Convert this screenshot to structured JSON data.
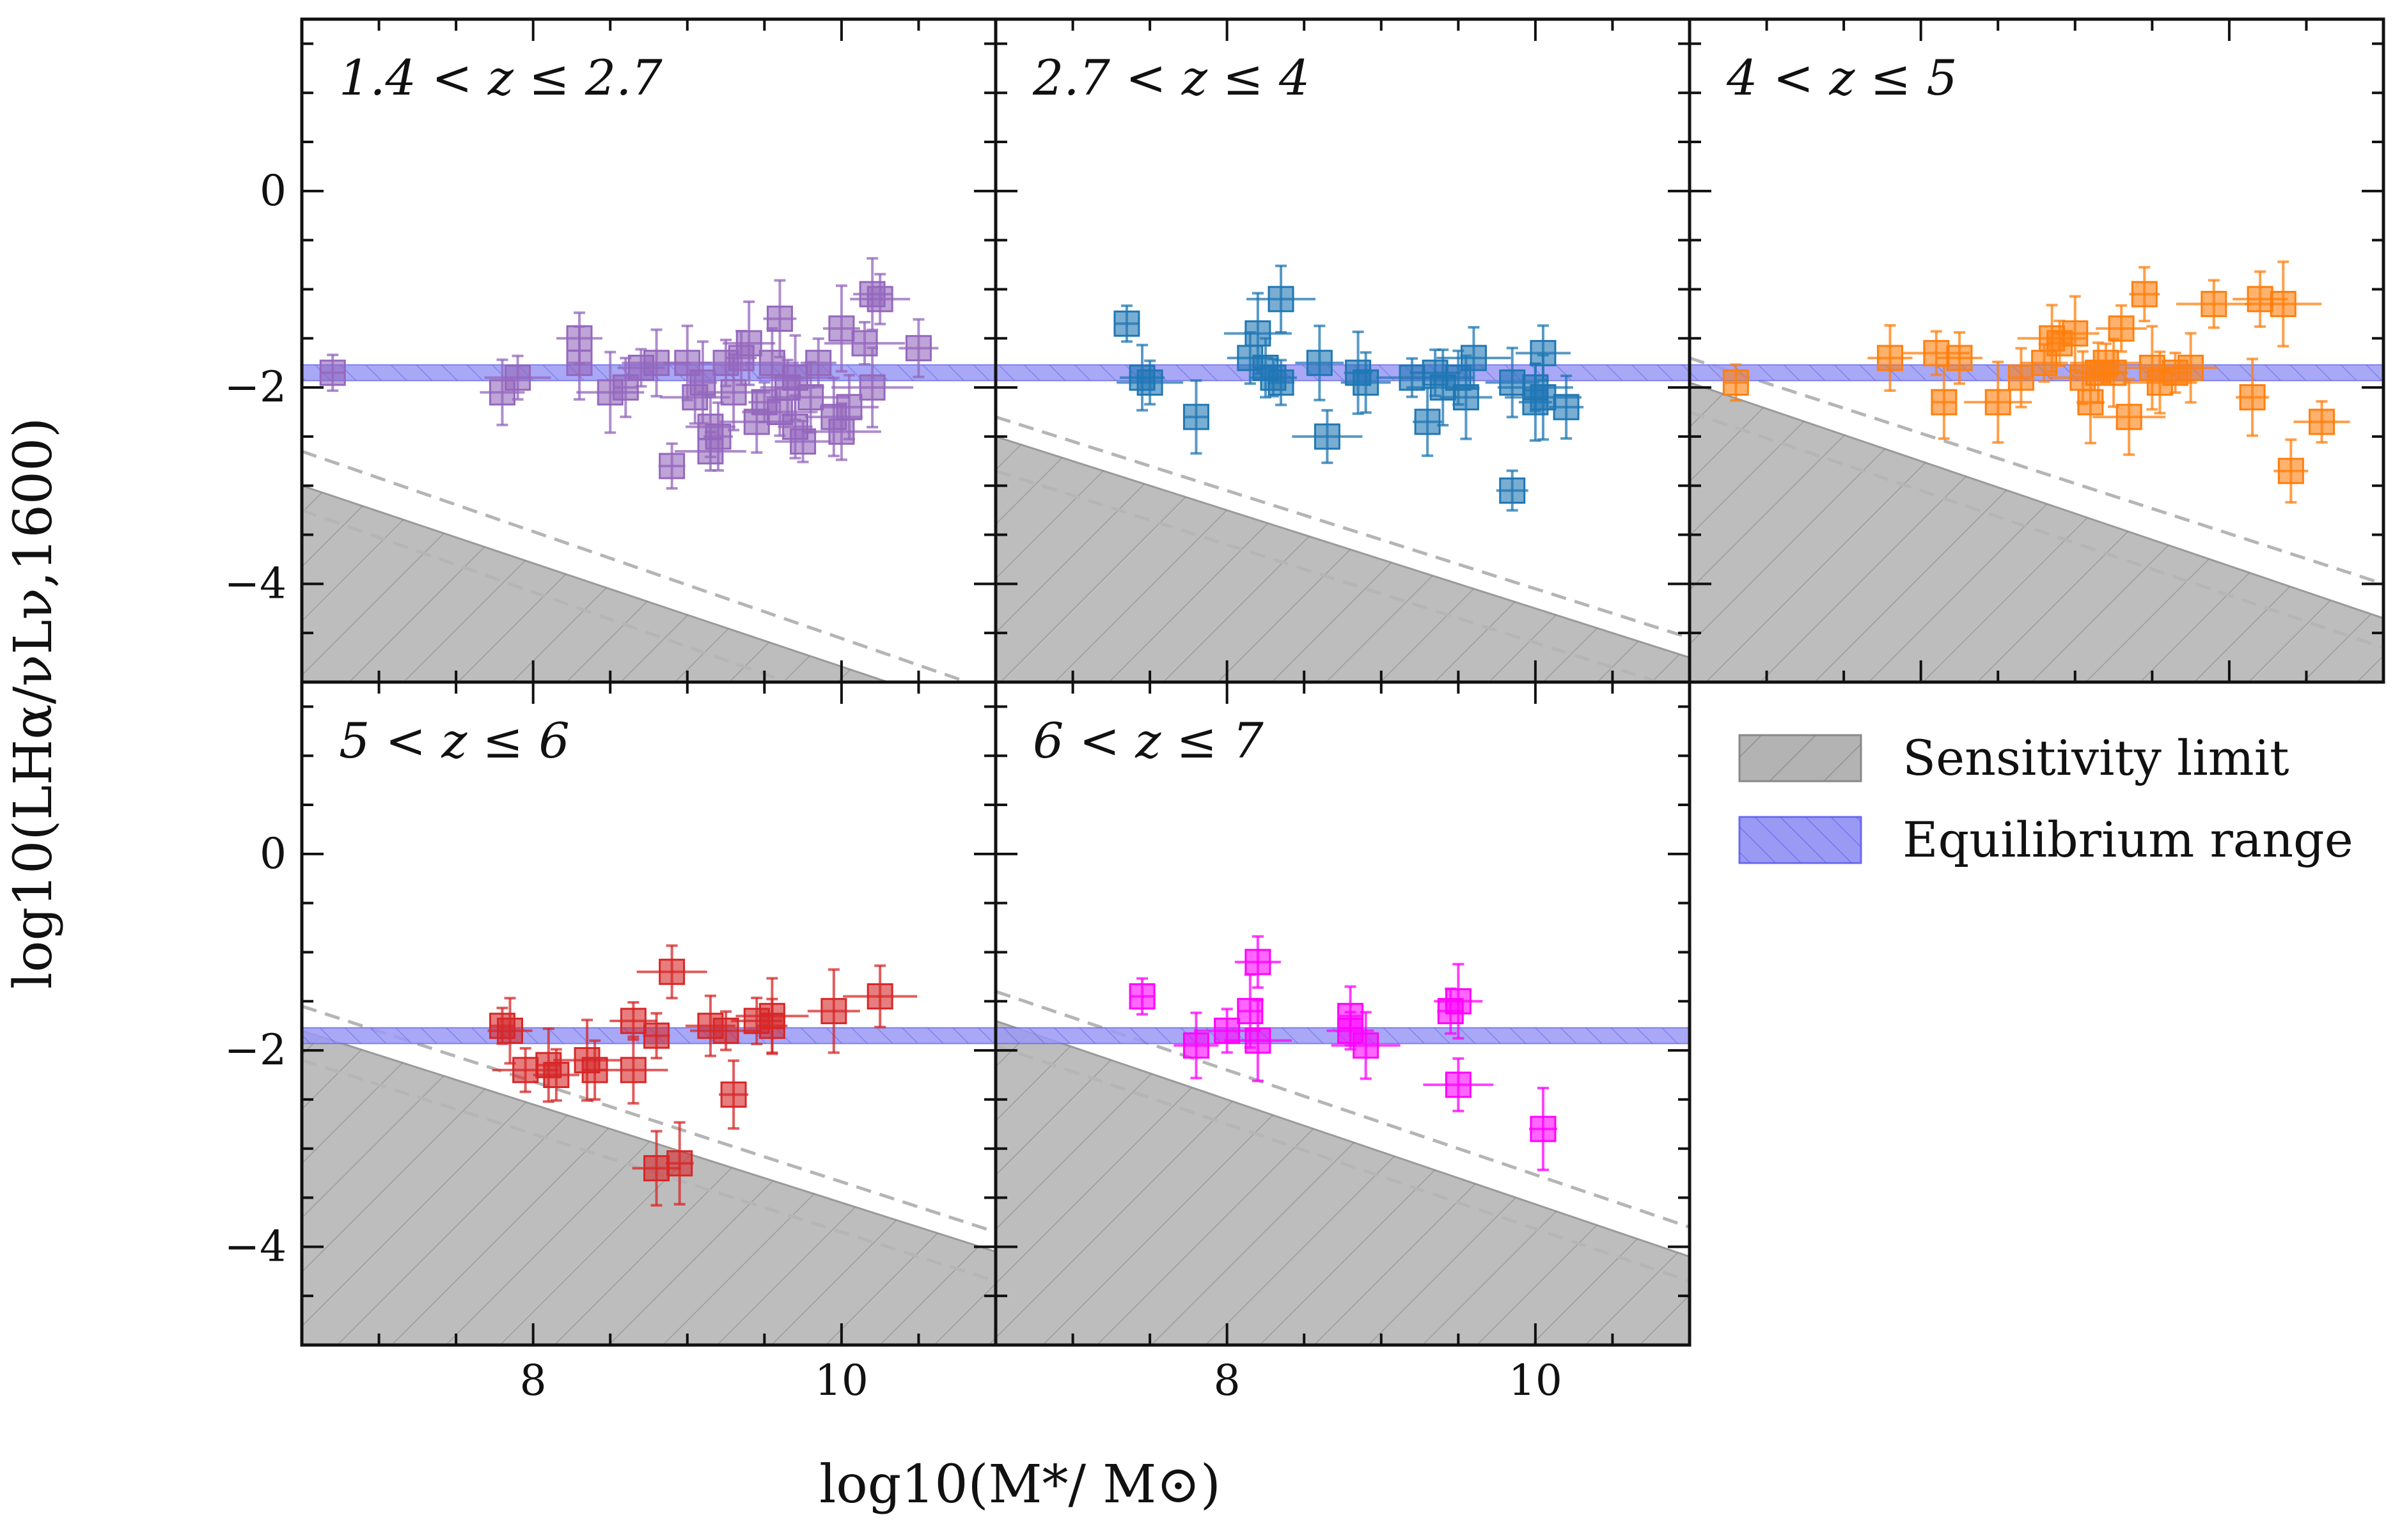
{
  "chart_data": {
    "type": "scatter",
    "title": "",
    "xlabel": "log10(M*/ M⊙)",
    "ylabel": "log10(LHα/νLν,1600)",
    "xlim": [
      6.5,
      11.0
    ],
    "ylim": [
      -5.0,
      1.75
    ],
    "xticks": [
      "8",
      "10"
    ],
    "yticks": [
      "0",
      "−2",
      "−4"
    ],
    "legend": {
      "placement": "empty panel bottom-right",
      "entries": [
        {
          "label": "Sensitivity limit",
          "color": "#b3b3b3"
        },
        {
          "label": "Equilibrium range",
          "color": "#9a9af5"
        }
      ]
    },
    "equilibrium_range": [
      -1.93,
      -1.77
    ],
    "panels": [
      {
        "label": "1.4 < z ≤ 2.7",
        "color": "#9467bd",
        "sensitivity_limit": {
          "points": [
            [
              6.5,
              -3.0
            ],
            [
              10.3,
              -5.0
            ]
          ]
        },
        "dashed_lines": [
          {
            "points": [
              [
                6.5,
                -2.65
              ],
              [
                11.0,
                -5.1
              ]
            ]
          },
          {
            "points": [
              [
                6.5,
                -3.25
              ],
              [
                11.0,
                -5.75
              ]
            ]
          }
        ],
        "points": [
          {
            "x": 6.7,
            "y": -1.85
          },
          {
            "x": 7.8,
            "y": -2.05
          },
          {
            "x": 7.9,
            "y": -1.9
          },
          {
            "x": 8.3,
            "y": -1.75
          },
          {
            "x": 8.3,
            "y": -1.5
          },
          {
            "x": 8.5,
            "y": -2.05
          },
          {
            "x": 8.6,
            "y": -2.0
          },
          {
            "x": 8.7,
            "y": -1.8
          },
          {
            "x": 8.8,
            "y": -1.75
          },
          {
            "x": 8.9,
            "y": -2.8
          },
          {
            "x": 9.0,
            "y": -1.75
          },
          {
            "x": 9.05,
            "y": -2.1
          },
          {
            "x": 9.1,
            "y": -1.95
          },
          {
            "x": 9.15,
            "y": -2.4
          },
          {
            "x": 9.15,
            "y": -2.65
          },
          {
            "x": 9.2,
            "y": -2.5
          },
          {
            "x": 9.25,
            "y": -1.75
          },
          {
            "x": 9.3,
            "y": -2.05
          },
          {
            "x": 9.35,
            "y": -1.7
          },
          {
            "x": 9.4,
            "y": -1.55
          },
          {
            "x": 9.45,
            "y": -2.35
          },
          {
            "x": 9.5,
            "y": -2.15
          },
          {
            "x": 9.55,
            "y": -1.75
          },
          {
            "x": 9.6,
            "y": -2.25
          },
          {
            "x": 9.6,
            "y": -1.3
          },
          {
            "x": 9.65,
            "y": -2.0
          },
          {
            "x": 9.7,
            "y": -1.9
          },
          {
            "x": 9.7,
            "y": -2.4
          },
          {
            "x": 9.75,
            "y": -2.55
          },
          {
            "x": 9.8,
            "y": -2.1
          },
          {
            "x": 9.85,
            "y": -1.75
          },
          {
            "x": 9.95,
            "y": -2.3
          },
          {
            "x": 10.0,
            "y": -2.45
          },
          {
            "x": 10.0,
            "y": -1.4
          },
          {
            "x": 10.05,
            "y": -2.2
          },
          {
            "x": 10.15,
            "y": -1.55
          },
          {
            "x": 10.2,
            "y": -1.05
          },
          {
            "x": 10.25,
            "y": -1.1
          },
          {
            "x": 10.2,
            "y": -2.0
          },
          {
            "x": 10.5,
            "y": -1.6
          }
        ]
      },
      {
        "label": "2.7 < z ≤ 4",
        "color": "#1f77b4",
        "sensitivity_limit": {
          "points": [
            [
              6.5,
              -2.5
            ],
            [
              11.0,
              -4.75
            ]
          ]
        },
        "dashed_lines": [
          {
            "points": [
              [
                6.5,
                -2.3
              ],
              [
                11.0,
                -4.55
              ]
            ]
          },
          {
            "points": [
              [
                6.5,
                -2.85
              ],
              [
                11.0,
                -5.1
              ]
            ]
          }
        ],
        "points": [
          {
            "x": 7.35,
            "y": -1.35
          },
          {
            "x": 7.45,
            "y": -1.9
          },
          {
            "x": 7.5,
            "y": -1.95
          },
          {
            "x": 7.8,
            "y": -2.3
          },
          {
            "x": 8.15,
            "y": -1.7
          },
          {
            "x": 8.2,
            "y": -1.45
          },
          {
            "x": 8.25,
            "y": -1.8
          },
          {
            "x": 8.3,
            "y": -1.9
          },
          {
            "x": 8.35,
            "y": -1.1
          },
          {
            "x": 8.35,
            "y": -1.95
          },
          {
            "x": 8.6,
            "y": -1.75
          },
          {
            "x": 8.65,
            "y": -2.5
          },
          {
            "x": 8.85,
            "y": -1.85
          },
          {
            "x": 8.9,
            "y": -1.95
          },
          {
            "x": 9.2,
            "y": -1.9
          },
          {
            "x": 9.3,
            "y": -2.35
          },
          {
            "x": 9.35,
            "y": -1.85
          },
          {
            "x": 9.4,
            "y": -2.0
          },
          {
            "x": 9.5,
            "y": -1.9
          },
          {
            "x": 9.55,
            "y": -2.1
          },
          {
            "x": 9.6,
            "y": -1.7
          },
          {
            "x": 9.85,
            "y": -3.05
          },
          {
            "x": 9.85,
            "y": -1.95
          },
          {
            "x": 10.0,
            "y": -2.0
          },
          {
            "x": 10.0,
            "y": -2.15
          },
          {
            "x": 10.05,
            "y": -1.65
          },
          {
            "x": 10.05,
            "y": -2.1
          },
          {
            "x": 10.2,
            "y": -2.2
          }
        ]
      },
      {
        "label": "4 < z ≤ 5",
        "color": "#ff7f0e",
        "sensitivity_limit": {
          "points": [
            [
              6.5,
              -1.95
            ],
            [
              11.0,
              -4.35
            ]
          ]
        },
        "dashed_lines": [
          {
            "points": [
              [
                6.5,
                -1.7
              ],
              [
                11.0,
                -4.0
              ]
            ]
          },
          {
            "points": [
              [
                6.5,
                -2.25
              ],
              [
                11.0,
                -4.65
              ]
            ]
          }
        ],
        "points": [
          {
            "x": 6.8,
            "y": -1.95
          },
          {
            "x": 7.8,
            "y": -1.7
          },
          {
            "x": 8.1,
            "y": -1.65
          },
          {
            "x": 8.15,
            "y": -2.15
          },
          {
            "x": 8.25,
            "y": -1.7
          },
          {
            "x": 8.5,
            "y": -2.15
          },
          {
            "x": 8.65,
            "y": -1.9
          },
          {
            "x": 8.8,
            "y": -1.75
          },
          {
            "x": 8.85,
            "y": -1.5
          },
          {
            "x": 8.9,
            "y": -1.55
          },
          {
            "x": 9.0,
            "y": -1.45
          },
          {
            "x": 9.05,
            "y": -1.9
          },
          {
            "x": 9.1,
            "y": -2.15
          },
          {
            "x": 9.15,
            "y": -1.85
          },
          {
            "x": 9.2,
            "y": -1.75
          },
          {
            "x": 9.25,
            "y": -1.85
          },
          {
            "x": 9.3,
            "y": -1.4
          },
          {
            "x": 9.35,
            "y": -2.3
          },
          {
            "x": 9.45,
            "y": -1.05
          },
          {
            "x": 9.5,
            "y": -1.8
          },
          {
            "x": 9.55,
            "y": -1.95
          },
          {
            "x": 9.65,
            "y": -1.85
          },
          {
            "x": 9.75,
            "y": -1.8
          },
          {
            "x": 9.9,
            "y": -1.15
          },
          {
            "x": 10.15,
            "y": -2.1
          },
          {
            "x": 10.2,
            "y": -1.1
          },
          {
            "x": 10.35,
            "y": -1.15
          },
          {
            "x": 10.4,
            "y": -2.85
          },
          {
            "x": 10.6,
            "y": -2.35
          }
        ]
      },
      {
        "label": "5 < z ≤ 6",
        "color": "#d62728",
        "sensitivity_limit": {
          "points": [
            [
              6.5,
              -1.8
            ],
            [
              11.0,
              -4.05
            ]
          ]
        },
        "dashed_lines": [
          {
            "points": [
              [
                6.5,
                -1.55
              ],
              [
                11.0,
                -3.85
              ]
            ]
          },
          {
            "points": [
              [
                6.5,
                -2.1
              ],
              [
                11.0,
                -4.35
              ]
            ]
          }
        ],
        "points": [
          {
            "x": 7.8,
            "y": -1.75
          },
          {
            "x": 7.85,
            "y": -1.8
          },
          {
            "x": 7.95,
            "y": -2.2
          },
          {
            "x": 8.1,
            "y": -2.15
          },
          {
            "x": 8.15,
            "y": -2.25
          },
          {
            "x": 8.35,
            "y": -2.1
          },
          {
            "x": 8.4,
            "y": -2.2
          },
          {
            "x": 8.65,
            "y": -1.7
          },
          {
            "x": 8.65,
            "y": -2.2
          },
          {
            "x": 8.8,
            "y": -1.85
          },
          {
            "x": 8.8,
            "y": -3.2
          },
          {
            "x": 8.9,
            "y": -1.2
          },
          {
            "x": 8.95,
            "y": -3.15
          },
          {
            "x": 9.15,
            "y": -1.75
          },
          {
            "x": 9.25,
            "y": -1.8
          },
          {
            "x": 9.3,
            "y": -2.45
          },
          {
            "x": 9.45,
            "y": -1.7
          },
          {
            "x": 9.55,
            "y": -1.65
          },
          {
            "x": 9.55,
            "y": -1.75
          },
          {
            "x": 9.95,
            "y": -1.6
          },
          {
            "x": 10.25,
            "y": -1.45
          }
        ]
      },
      {
        "label": "6 < z ≤ 7",
        "color": "#ff00ff",
        "sensitivity_limit": {
          "points": [
            [
              6.5,
              -1.7
            ],
            [
              11.0,
              -4.1
            ]
          ]
        },
        "dashed_lines": [
          {
            "points": [
              [
                6.5,
                -1.4
              ],
              [
                11.0,
                -3.8
              ]
            ]
          },
          {
            "points": [
              [
                6.5,
                -1.95
              ],
              [
                11.0,
                -4.35
              ]
            ]
          }
        ],
        "points": [
          {
            "x": 7.45,
            "y": -1.45
          },
          {
            "x": 7.8,
            "y": -1.95
          },
          {
            "x": 8.0,
            "y": -1.8
          },
          {
            "x": 8.15,
            "y": -1.6
          },
          {
            "x": 8.2,
            "y": -1.1
          },
          {
            "x": 8.2,
            "y": -1.9
          },
          {
            "x": 8.8,
            "y": -1.65
          },
          {
            "x": 8.8,
            "y": -1.8
          },
          {
            "x": 8.9,
            "y": -1.95
          },
          {
            "x": 9.45,
            "y": -1.6
          },
          {
            "x": 9.5,
            "y": -1.5
          },
          {
            "x": 9.5,
            "y": -2.35
          },
          {
            "x": 10.05,
            "y": -2.8
          }
        ]
      }
    ]
  }
}
